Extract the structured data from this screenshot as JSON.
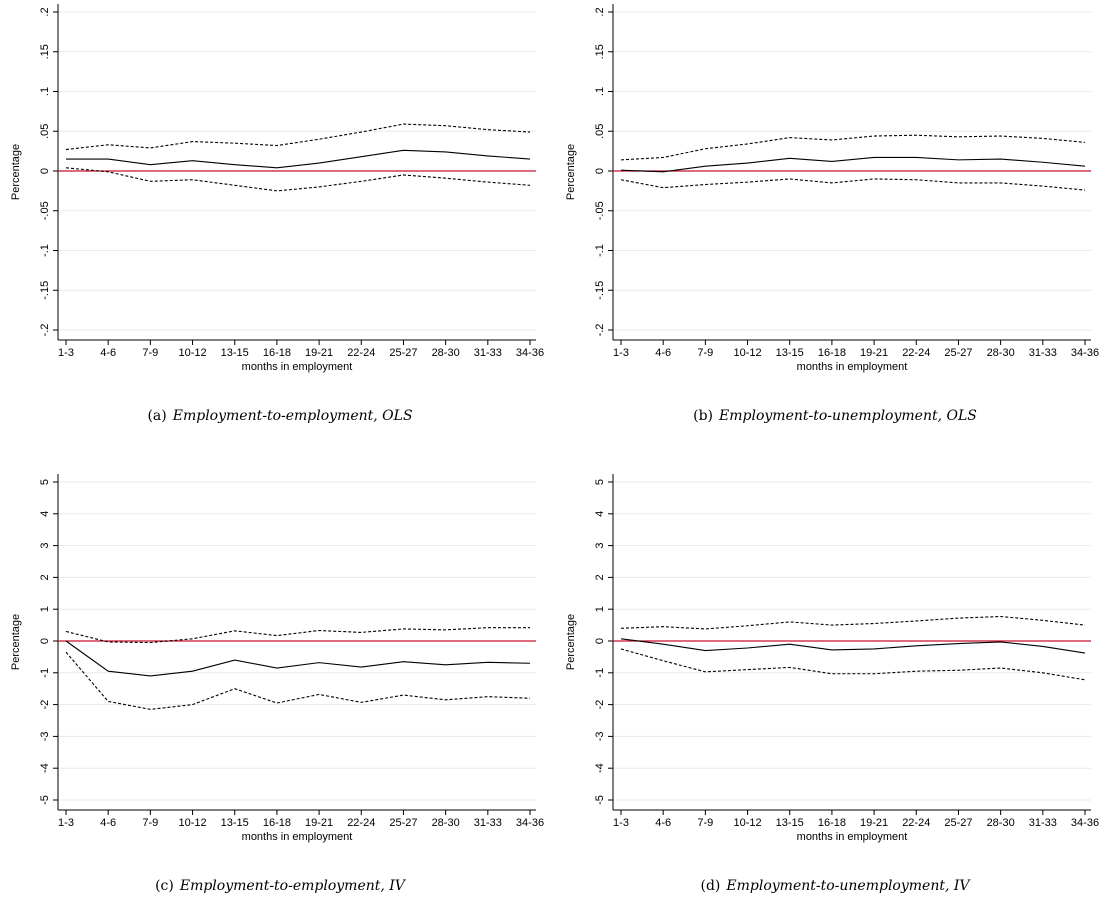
{
  "chart_data": [
    {
      "type": "line",
      "caption_label": "(a)",
      "caption": "Employment-to-employment, OLS",
      "xlabel": "months in employment",
      "ylabel": "Percentage",
      "categories": [
        "1-3",
        "4-6",
        "7-9",
        "10-12",
        "13-15",
        "16-18",
        "19-21",
        "22-24",
        "25-27",
        "28-30",
        "31-33",
        "34-36"
      ],
      "series": [
        {
          "color": "#000000",
          "style": "solid",
          "values": [
            0.015,
            0.015,
            0.008,
            0.013,
            0.008,
            0.004,
            0.01,
            0.018,
            0.026,
            0.024,
            0.019,
            0.015
          ]
        },
        {
          "color": "#000000",
          "style": "dashed",
          "values": [
            0.027,
            0.033,
            0.029,
            0.037,
            0.035,
            0.032,
            0.04,
            0.049,
            0.059,
            0.057,
            0.052,
            0.049
          ]
        },
        {
          "color": "#000000",
          "style": "dashed",
          "values": [
            0.004,
            -0.001,
            -0.013,
            -0.011,
            -0.018,
            -0.025,
            -0.02,
            -0.013,
            -0.005,
            -0.009,
            -0.014,
            -0.018
          ]
        }
      ],
      "ylim": [
        -0.2,
        0.2
      ],
      "yticks": [
        {
          "value": -0.2,
          "label": "-.2"
        },
        {
          "value": -0.15,
          "label": "-.15"
        },
        {
          "value": -0.1,
          "label": "-.1"
        },
        {
          "value": -0.05,
          "label": "-.05"
        },
        0,
        {
          "value": 0.05,
          "label": ".05"
        },
        {
          "value": 0.1,
          "label": ".1"
        },
        {
          "value": 0.15,
          "label": ".15"
        },
        {
          "value": 0.2,
          "label": ".2"
        }
      ],
      "grid": true,
      "hline": {
        "value": 0,
        "color": "#c8102e"
      }
    },
    {
      "type": "line",
      "caption_label": "(b)",
      "caption": "Employment-to-unemployment, OLS",
      "xlabel": "months in employment",
      "ylabel": "Percentage",
      "categories": [
        "1-3",
        "4-6",
        "7-9",
        "10-12",
        "13-15",
        "16-18",
        "19-21",
        "22-24",
        "25-27",
        "28-30",
        "31-33",
        "34-36"
      ],
      "series": [
        {
          "color": "#000000",
          "style": "solid",
          "values": [
            0.001,
            -0.001,
            0.006,
            0.01,
            0.016,
            0.012,
            0.017,
            0.017,
            0.014,
            0.015,
            0.011,
            0.006
          ]
        },
        {
          "color": "#000000",
          "style": "dashed",
          "values": [
            0.014,
            0.017,
            0.028,
            0.034,
            0.042,
            0.039,
            0.044,
            0.045,
            0.043,
            0.044,
            0.041,
            0.036
          ]
        },
        {
          "color": "#000000",
          "style": "dashed",
          "values": [
            -0.011,
            -0.021,
            -0.017,
            -0.014,
            -0.01,
            -0.015,
            -0.01,
            -0.011,
            -0.015,
            -0.015,
            -0.019,
            -0.024
          ]
        }
      ],
      "ylim": [
        -0.2,
        0.2
      ],
      "yticks": [
        {
          "value": -0.2,
          "label": "-.2"
        },
        {
          "value": -0.15,
          "label": "-.15"
        },
        {
          "value": -0.1,
          "label": "-.1"
        },
        {
          "value": -0.05,
          "label": "-.05"
        },
        0,
        {
          "value": 0.05,
          "label": ".05"
        },
        {
          "value": 0.1,
          "label": ".1"
        },
        {
          "value": 0.15,
          "label": ".15"
        },
        {
          "value": 0.2,
          "label": ".2"
        }
      ],
      "grid": true,
      "hline": {
        "value": 0,
        "color": "#c8102e"
      }
    },
    {
      "type": "line",
      "caption_label": "(c)",
      "caption": "Employment-to-employment, IV",
      "xlabel": "months in employment",
      "ylabel": "Percentage",
      "categories": [
        "1-3",
        "4-6",
        "7-9",
        "10-12",
        "13-15",
        "16-18",
        "19-21",
        "22-24",
        "25-27",
        "28-30",
        "31-33",
        "34-36"
      ],
      "series": [
        {
          "color": "#000000",
          "style": "solid",
          "values": [
            0,
            -0.95,
            -1.1,
            -0.95,
            -0.6,
            -0.85,
            -0.68,
            -0.82,
            -0.65,
            -0.75,
            -0.67,
            -0.7
          ]
        },
        {
          "color": "#000000",
          "style": "dashed",
          "values": [
            0.3,
            -0.03,
            -0.05,
            0.07,
            0.32,
            0.17,
            0.33,
            0.27,
            0.38,
            0.35,
            0.42,
            0.42
          ]
        },
        {
          "color": "#000000",
          "style": "dashed",
          "values": [
            -0.35,
            -1.9,
            -2.15,
            -2.0,
            -1.5,
            -1.95,
            -1.68,
            -1.93,
            -1.7,
            -1.85,
            -1.75,
            -1.8
          ]
        }
      ],
      "ylim": [
        -5,
        5
      ],
      "yticks": [
        -5,
        -4,
        -3,
        -2,
        -1,
        0,
        1,
        2,
        3,
        4,
        5
      ],
      "grid": true,
      "hline": {
        "value": 0,
        "color": "#c8102e"
      }
    },
    {
      "type": "line",
      "caption_label": "(d)",
      "caption": "Employment-to-unemployment, IV",
      "xlabel": "months in employment",
      "ylabel": "Percentage",
      "categories": [
        "1-3",
        "4-6",
        "7-9",
        "10-12",
        "13-15",
        "16-18",
        "19-21",
        "22-24",
        "25-27",
        "28-30",
        "31-33",
        "34-36"
      ],
      "series": [
        {
          "color": "#000000",
          "style": "solid",
          "values": [
            0.07,
            -0.1,
            -0.3,
            -0.22,
            -0.1,
            -0.28,
            -0.25,
            -0.15,
            -0.08,
            -0.03,
            -0.17,
            -0.38
          ]
        },
        {
          "color": "#000000",
          "style": "dashed",
          "values": [
            0.4,
            0.45,
            0.38,
            0.48,
            0.6,
            0.5,
            0.55,
            0.63,
            0.72,
            0.77,
            0.65,
            0.5
          ]
        },
        {
          "color": "#000000",
          "style": "dashed",
          "values": [
            -0.25,
            -0.62,
            -0.97,
            -0.9,
            -0.83,
            -1.03,
            -1.03,
            -0.95,
            -0.92,
            -0.85,
            -1.0,
            -1.22
          ]
        }
      ],
      "ylim": [
        -5,
        5
      ],
      "yticks": [
        -5,
        -4,
        -3,
        -2,
        -1,
        0,
        1,
        2,
        3,
        4,
        5
      ],
      "grid": true,
      "hline": {
        "value": 0,
        "color": "#c8102e"
      }
    }
  ]
}
